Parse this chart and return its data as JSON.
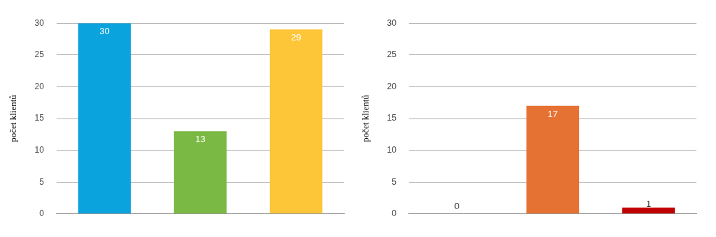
{
  "chart_data": [
    {
      "type": "bar",
      "ylabel": "počet klientů",
      "categories": [
        null,
        null,
        null
      ],
      "values": [
        30,
        13,
        29
      ],
      "colors": [
        "#0ba3dd",
        "#7ab943",
        "#fdc638"
      ],
      "ylim": [
        0,
        30
      ],
      "yticks": [
        0,
        5,
        10,
        15,
        20,
        25,
        30
      ],
      "grid": "y",
      "data_labels": true
    },
    {
      "type": "bar",
      "ylabel": "počet klientů",
      "categories": [
        null,
        null,
        null
      ],
      "values": [
        0,
        17,
        1
      ],
      "colors": [
        "#a5a5a5",
        "#e57232",
        "#c00000"
      ],
      "ylim": [
        0,
        30
      ],
      "yticks": [
        0,
        5,
        10,
        15,
        20,
        25,
        30
      ],
      "grid": "y",
      "data_labels": true
    }
  ]
}
